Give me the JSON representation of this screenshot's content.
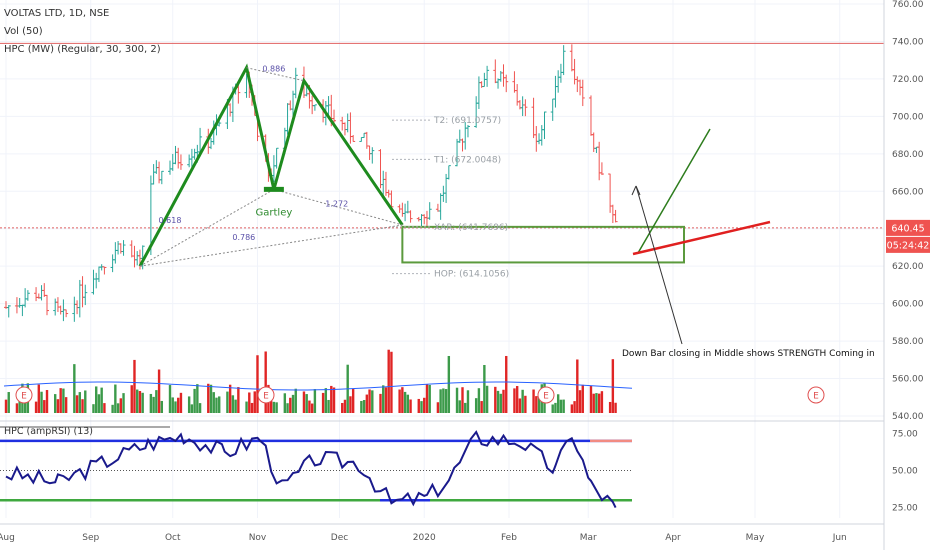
{
  "chart_data": {
    "type": "candlestick",
    "header": {
      "symbol_line": "VOLTAS LTD, 1D, NSE",
      "indicators": [
        "Vol (50)",
        "HPC (MW) (Regular, 30, 300, 2)"
      ]
    },
    "price_axis": {
      "ticks": [
        "760.00",
        "740.00",
        "720.00",
        "700.00",
        "680.00",
        "660.00",
        "640.00",
        "620.00",
        "600.00",
        "580.00",
        "560.00",
        "540.00"
      ],
      "range": [
        540,
        760
      ],
      "last_price": "640.45",
      "countdown": "05:24:42"
    },
    "time_axis": {
      "ticks": [
        "Aug",
        "Sep",
        "Oct",
        "Nov",
        "Dec",
        "2020",
        "Feb",
        "Mar",
        "Apr",
        "May",
        "Jun"
      ],
      "range": [
        "2019-08-01",
        "2020-06-15"
      ]
    },
    "candles_approx": [
      {
        "date": "2019-08-01",
        "close": 598
      },
      {
        "date": "2019-08-12",
        "close": 606
      },
      {
        "date": "2019-08-22",
        "close": 592
      },
      {
        "date": "2019-09-03",
        "close": 618
      },
      {
        "date": "2019-09-12",
        "close": 632
      },
      {
        "date": "2019-09-19",
        "close": 620
      },
      {
        "date": "2019-09-23",
        "close": 665
      },
      {
        "date": "2019-10-01",
        "close": 676
      },
      {
        "date": "2019-10-15",
        "close": 688
      },
      {
        "date": "2019-10-28",
        "close": 722
      },
      {
        "date": "2019-11-05",
        "close": 665
      },
      {
        "date": "2019-11-15",
        "close": 718
      },
      {
        "date": "2019-11-28",
        "close": 700
      },
      {
        "date": "2019-12-10",
        "close": 686
      },
      {
        "date": "2019-12-24",
        "close": 645
      },
      {
        "date": "2020-01-06",
        "close": 652
      },
      {
        "date": "2020-01-15",
        "close": 690
      },
      {
        "date": "2020-01-24",
        "close": 726
      },
      {
        "date": "2020-02-03",
        "close": 712
      },
      {
        "date": "2020-02-12",
        "close": 688
      },
      {
        "date": "2020-02-22",
        "close": 738
      },
      {
        "date": "2020-03-02",
        "close": 690
      },
      {
        "date": "2020-03-11",
        "close": 640
      }
    ],
    "horizontal_levels": [
      {
        "price": 739,
        "color": "#e06060"
      },
      {
        "price": 640.45,
        "color": "#e06060",
        "style": "dotted"
      }
    ],
    "harmonic_pattern": {
      "name": "Gartley",
      "points": [
        {
          "date": "2019-09-19",
          "price": 620
        },
        {
          "date": "2019-10-28",
          "price": 726
        },
        {
          "date": "2019-11-07",
          "price": 661
        },
        {
          "date": "2019-11-18",
          "price": 719
        },
        {
          "date": "2019-12-24",
          "price": 642
        }
      ],
      "ratios": [
        {
          "label": "0.886",
          "date": "2019-11-07",
          "price": 724
        },
        {
          "label": "0.618",
          "date": "2019-09-30",
          "price": 643
        },
        {
          "label": "0.786",
          "date": "2019-10-27",
          "price": 634
        },
        {
          "label": "1.272",
          "date": "2019-11-30",
          "price": 652
        }
      ],
      "levels": [
        {
          "label": "T2: (691.0757)",
          "price": 698
        },
        {
          "label": "T1: (672.0048)",
          "price": 677
        },
        {
          "label": "XAR: (641.7696)",
          "price": 641
        },
        {
          "label": "HOP: (614.1056)",
          "price": 616
        }
      ],
      "zone_low": 622,
      "zone_high": 641
    },
    "annotation": "Down Bar closing in Middle shows STRENGTH Coming in",
    "earnings_markers": [
      "E",
      "E",
      "E",
      "E"
    ],
    "volume_color_up": "#26a69a",
    "volume_color_down": "#ef5350",
    "rsi_pane": {
      "title": "HPC (ampRSI) (13)",
      "ticks": [
        "75.00",
        "50.00",
        "25.00"
      ],
      "range": [
        18,
        82
      ],
      "series_approx": [
        {
          "date": "2019-08-01",
          "value": 48
        },
        {
          "date": "2019-08-20",
          "value": 42
        },
        {
          "date": "2019-09-05",
          "value": 55
        },
        {
          "date": "2019-09-22",
          "value": 68
        },
        {
          "date": "2019-10-05",
          "value": 74
        },
        {
          "date": "2019-10-20",
          "value": 62
        },
        {
          "date": "2019-11-02",
          "value": 72
        },
        {
          "date": "2019-11-10",
          "value": 38
        },
        {
          "date": "2019-11-22",
          "value": 58
        },
        {
          "date": "2019-12-08",
          "value": 55
        },
        {
          "date": "2019-12-20",
          "value": 28
        },
        {
          "date": "2020-01-02",
          "value": 32
        },
        {
          "date": "2020-01-10",
          "value": 44
        },
        {
          "date": "2020-01-20",
          "value": 72
        },
        {
          "date": "2020-02-05",
          "value": 70
        },
        {
          "date": "2020-02-18",
          "value": 50
        },
        {
          "date": "2020-02-24",
          "value": 76
        },
        {
          "date": "2020-03-02",
          "value": 40
        },
        {
          "date": "2020-03-11",
          "value": 25
        }
      ]
    }
  }
}
